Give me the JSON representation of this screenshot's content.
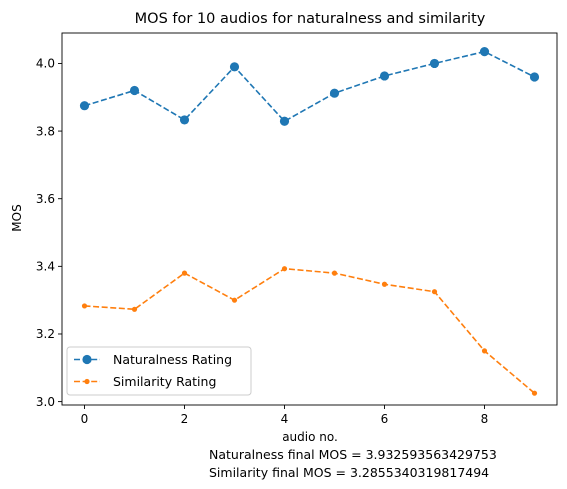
{
  "chart_data": {
    "type": "line",
    "title": "MOS for 10 audios for naturalness and similarity",
    "xlabel": "audio no.",
    "ylabel": "MOS",
    "x": [
      0,
      1,
      2,
      3,
      4,
      5,
      6,
      7,
      8,
      9
    ],
    "xlim": [
      -0.45,
      9.45
    ],
    "ylim": [
      2.99,
      4.09
    ],
    "xticks": [
      0,
      2,
      4,
      6,
      8
    ],
    "yticks": [
      3.0,
      3.2,
      3.4,
      3.6,
      3.8,
      4.0
    ],
    "ytick_labels": [
      "3.0",
      "3.2",
      "3.4",
      "3.6",
      "3.8",
      "4.0"
    ],
    "grid": false,
    "legend_position": "lower-left",
    "series": [
      {
        "name": "Naturalness Rating",
        "color": "#1f77b4",
        "marker": "circle",
        "linestyle": "dashed",
        "values": [
          3.875,
          3.92,
          3.833,
          3.99,
          3.829,
          3.912,
          3.963,
          4.0,
          4.035,
          3.96
        ]
      },
      {
        "name": "Similarity Rating",
        "color": "#ff7f0e",
        "marker": "point",
        "linestyle": "dashed",
        "values": [
          3.283,
          3.273,
          3.38,
          3.3,
          3.393,
          3.38,
          3.347,
          3.325,
          3.15,
          3.025
        ]
      }
    ],
    "footer_lines": [
      "Naturalness final MOS = 3.932593563429753",
      "Similarity final MOS = 3.2855340319817494"
    ]
  }
}
